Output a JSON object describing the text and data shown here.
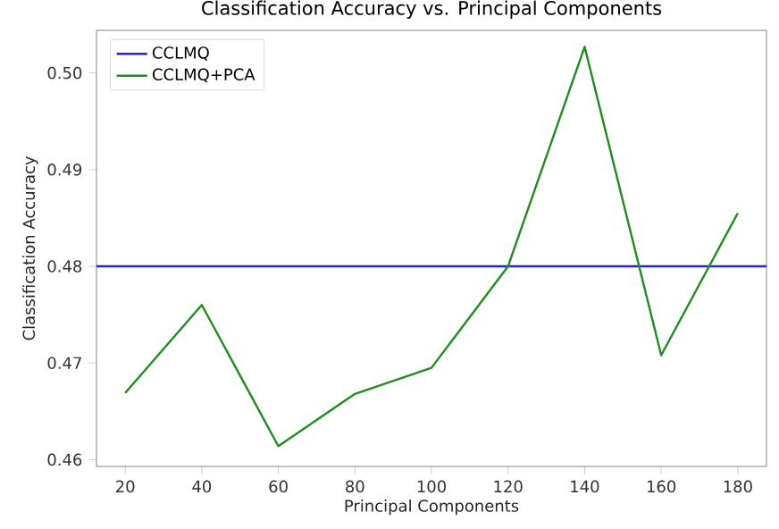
{
  "chart_data": {
    "type": "line",
    "title": "Classification Accuracy vs. Principal Components",
    "xlabel": "Principal Components",
    "ylabel": "Classification Accuracy",
    "xlim": [
      12.5,
      187.5
    ],
    "ylim": [
      0.4593,
      0.5044
    ],
    "xticks": [
      20,
      40,
      60,
      80,
      100,
      120,
      140,
      160,
      180
    ],
    "yticks": [
      {
        "value": 0.46,
        "label": "0.46"
      },
      {
        "value": 0.47,
        "label": "0.47"
      },
      {
        "value": 0.48,
        "label": "0.48"
      },
      {
        "value": 0.49,
        "label": "0.49"
      },
      {
        "value": 0.5,
        "label": "0.50"
      }
    ],
    "grid": false,
    "legend": "top left",
    "marker": "none",
    "line_style": "solid",
    "series": [
      {
        "name": "CCLMQ",
        "color": "#2222ee",
        "x": [
          12.5,
          187.5
        ],
        "values": [
          0.48,
          0.48
        ]
      },
      {
        "name": "CCLMQ+PCA",
        "color": "#228b22",
        "x": [
          20,
          40,
          60,
          80,
          100,
          120,
          140,
          160,
          180
        ],
        "values": [
          0.4669,
          0.476,
          0.4614,
          0.4668,
          0.4695,
          0.48,
          0.5027,
          0.4708,
          0.4855
        ]
      }
    ]
  }
}
